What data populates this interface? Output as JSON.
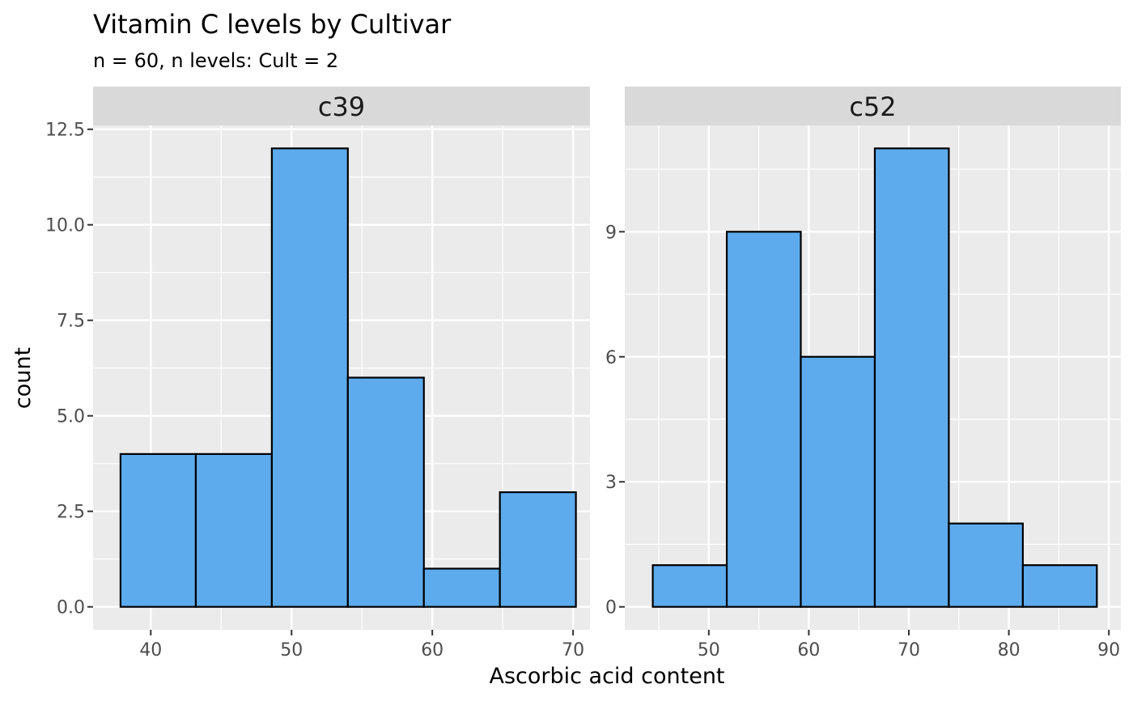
{
  "title": "Vitamin C levels by Cultivar",
  "subtitle": "n = 60, n levels: Cult = 2",
  "xlabel": "Ascorbic acid content",
  "ylabel": "count",
  "colors": {
    "bar_fill": "#5DABED",
    "bar_stroke": "#000000",
    "panel_bg": "#EBEBEB",
    "strip_bg": "#D9D9D9",
    "grid": "#FFFFFF"
  },
  "chart_data": [
    {
      "type": "bar",
      "facet": "c39",
      "bins": [
        {
          "x0": 37.85,
          "x1": 43.2,
          "count": 4
        },
        {
          "x0": 43.2,
          "x1": 48.6,
          "count": 4
        },
        {
          "x0": 48.6,
          "x1": 54.0,
          "count": 12
        },
        {
          "x0": 54.0,
          "x1": 59.4,
          "count": 6
        },
        {
          "x0": 59.4,
          "x1": 64.8,
          "count": 1
        },
        {
          "x0": 64.8,
          "x1": 70.2,
          "count": 3
        }
      ],
      "xlim": [
        35.9,
        71.2
      ],
      "ylim": [
        -0.6,
        12.6
      ],
      "xticks": [
        40,
        50,
        60,
        70
      ],
      "yticks": [
        0,
        2.5,
        5,
        7.5,
        10,
        12.5
      ],
      "ytick_labels": [
        "0.0",
        "2.5",
        "5.0",
        "7.5",
        "10.0",
        "12.5"
      ]
    },
    {
      "type": "bar",
      "facet": "c52",
      "bins": [
        {
          "x0": 44.4,
          "x1": 51.8,
          "count": 1
        },
        {
          "x0": 51.8,
          "x1": 59.2,
          "count": 9
        },
        {
          "x0": 59.2,
          "x1": 66.6,
          "count": 6
        },
        {
          "x0": 66.6,
          "x1": 74.0,
          "count": 11
        },
        {
          "x0": 74.0,
          "x1": 81.4,
          "count": 2
        },
        {
          "x0": 81.4,
          "x1": 88.8,
          "count": 1
        }
      ],
      "xlim": [
        41.6,
        91.2
      ],
      "ylim": [
        -0.55,
        11.55
      ],
      "xticks": [
        50,
        60,
        70,
        80,
        90
      ],
      "yticks": [
        0,
        3,
        6,
        9
      ],
      "ytick_labels": [
        "0",
        "3",
        "6",
        "9"
      ]
    }
  ]
}
